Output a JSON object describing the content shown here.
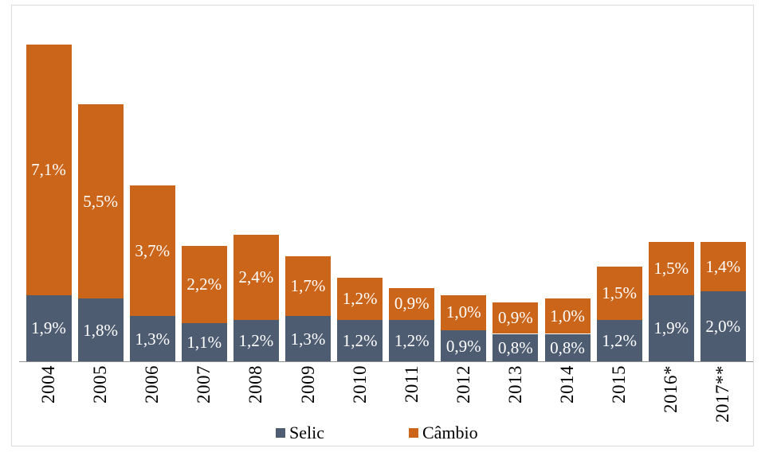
{
  "chart_data": {
    "type": "bar",
    "stacked": true,
    "title": "",
    "xlabel": "",
    "ylabel": "",
    "grid": false,
    "legend_position": "bottom",
    "ylim": [
      0,
      9.0
    ],
    "background": "#FFFFFF",
    "frame_border_color": "#D9D9D9",
    "axis_line_color": "#8F8F8F",
    "tick_label_color": "#000000",
    "data_label_color": "#FFFFFF",
    "categories": [
      "2004",
      "2005",
      "2006",
      "2007",
      "2008",
      "2009",
      "2010",
      "2011",
      "2012",
      "2013",
      "2014",
      "2015",
      "2016*",
      "2017**"
    ],
    "series": [
      {
        "name": "Selic",
        "color": "#4E5C72",
        "values": [
          1.9,
          1.8,
          1.3,
          1.1,
          1.2,
          1.3,
          1.2,
          1.2,
          0.9,
          0.8,
          0.8,
          1.2,
          1.9,
          2.0
        ],
        "labels": [
          "1,9%",
          "1,8%",
          "1,3%",
          "1,1%",
          "1,2%",
          "1,3%",
          "1,2%",
          "1,2%",
          "0,9%",
          "0,8%",
          "0,8%",
          "1,2%",
          "1,9%",
          "2,0%"
        ]
      },
      {
        "name": "Câmbio",
        "color": "#CB651A",
        "values": [
          7.1,
          5.5,
          3.7,
          2.2,
          2.4,
          1.7,
          1.2,
          0.9,
          1.0,
          0.9,
          1.0,
          1.5,
          1.5,
          1.4
        ],
        "labels": [
          "7,1%",
          "5,5%",
          "3,7%",
          "2,2%",
          "2,4%",
          "1,7%",
          "1,2%",
          "0,9%",
          "1,0%",
          "0,9%",
          "1,0%",
          "1,5%",
          "1,5%",
          "1,4%"
        ]
      }
    ]
  }
}
